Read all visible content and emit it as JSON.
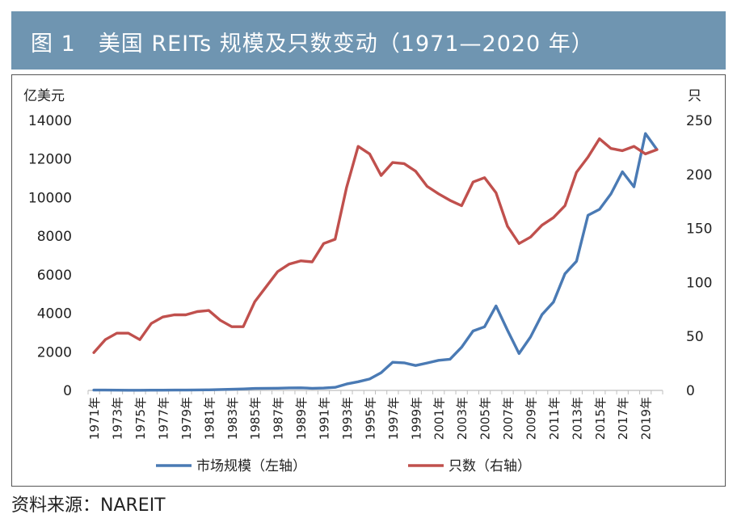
{
  "figure": {
    "title": "图 1　美国 REITs 规模及只数变动（1971—2020 年）",
    "source": "资料来源：NAREIT"
  },
  "chart_data": {
    "type": "line",
    "title": "图 1　美国 REITs 规模及只数变动（1971—2020 年）",
    "y_left_label": "亿美元",
    "y_right_label": "只",
    "y_left_lim": [
      0,
      14000
    ],
    "y_right_lim": [
      0,
      250
    ],
    "y_left_ticks": [
      0,
      2000,
      4000,
      6000,
      8000,
      10000,
      12000,
      14000
    ],
    "y_right_ticks": [
      0,
      50,
      100,
      150,
      200,
      250
    ],
    "x": [
      1971,
      1972,
      1973,
      1974,
      1975,
      1976,
      1977,
      1978,
      1979,
      1980,
      1981,
      1982,
      1983,
      1984,
      1985,
      1986,
      1987,
      1988,
      1989,
      1990,
      1991,
      1992,
      1993,
      1994,
      1995,
      1996,
      1997,
      1998,
      1999,
      2000,
      2001,
      2002,
      2003,
      2004,
      2005,
      2006,
      2007,
      2008,
      2009,
      2010,
      2011,
      2012,
      2013,
      2014,
      2015,
      2016,
      2017,
      2018,
      2019,
      2020
    ],
    "x_tick_labels": [
      "1971年",
      "1973年",
      "1975年",
      "1977年",
      "1979年",
      "1981年",
      "1983年",
      "1985年",
      "1987年",
      "1989年",
      "1991年",
      "1993年",
      "1995年",
      "1997年",
      "1999年",
      "2001年",
      "2003年",
      "2005年",
      "2007年",
      "2009年",
      "2011年",
      "2013年",
      "2015年",
      "2017年",
      "2019年"
    ],
    "grid": false,
    "legend_position": "bottom",
    "series": [
      {
        "name": "市场规模（左轴）",
        "axis": "left",
        "color": "#4a7ab4",
        "values": [
          15,
          18,
          12,
          7,
          9,
          12,
          14,
          15,
          17,
          25,
          30,
          45,
          60,
          75,
          100,
          110,
          115,
          130,
          135,
          110,
          120,
          160,
          330,
          450,
          590,
          920,
          1460,
          1430,
          1290,
          1420,
          1560,
          1620,
          2240,
          3080,
          3300,
          4380,
          3120,
          1910,
          2770,
          3930,
          4580,
          6050,
          6700,
          9080,
          9390,
          10190,
          11340,
          10560,
          13320,
          12490
        ]
      },
      {
        "name": "只数（右轴）",
        "axis": "right",
        "color": "#c0504d",
        "values": [
          35,
          47,
          53,
          53,
          47,
          62,
          68,
          70,
          70,
          73,
          74,
          65,
          59,
          59,
          82,
          96,
          110,
          117,
          120,
          119,
          136,
          140,
          188,
          226,
          219,
          199,
          211,
          210,
          203,
          189,
          182,
          176,
          171,
          193,
          197,
          183,
          152,
          136,
          142,
          153,
          160,
          171,
          202,
          216,
          233,
          224,
          222,
          226,
          219,
          223
        ]
      }
    ]
  }
}
